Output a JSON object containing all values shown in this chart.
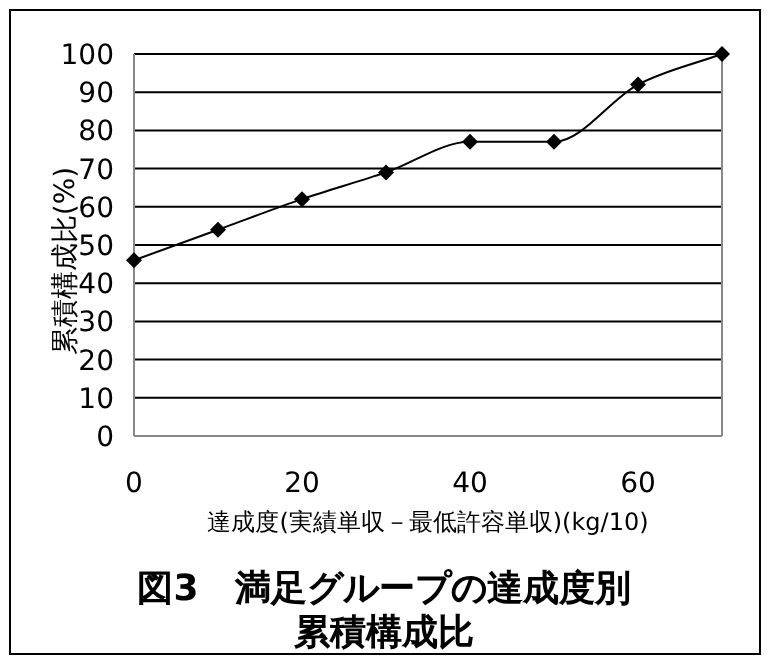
{
  "chart_data": {
    "type": "line",
    "title": "図3　満足グループの達成度別累積構成比",
    "xlabel": "達成度(実績単収－最低許容単収)(kg/10)",
    "ylabel": "累積構成比(%)",
    "x": [
      0,
      10,
      20,
      30,
      40,
      50,
      60,
      70
    ],
    "series": [
      {
        "color": "#000000",
        "values": [
          46,
          54,
          62,
          69,
          77,
          77,
          92,
          100
        ]
      }
    ],
    "xlim": [
      0,
      70
    ],
    "xticks": [
      0,
      20,
      40,
      60
    ],
    "ylim": [
      0,
      100
    ],
    "yticks": [
      0,
      10,
      20,
      30,
      40,
      50,
      60,
      70,
      80,
      90,
      100
    ],
    "grid": "y",
    "marker": "diamond",
    "line_style": "solid"
  }
}
